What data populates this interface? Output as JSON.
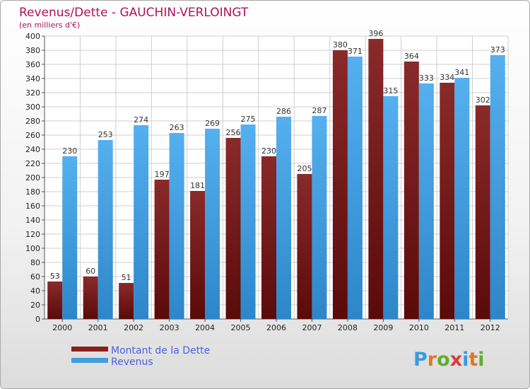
{
  "chart_data": {
    "type": "bar",
    "title": "Revenus/Dette - GAUCHIN-VERLOINGT",
    "subtitle": "(en milliers d'€)",
    "categories": [
      "2000",
      "2001",
      "2002",
      "2003",
      "2004",
      "2005",
      "2006",
      "2007",
      "2008",
      "2009",
      "2010",
      "2011",
      "2012"
    ],
    "series": [
      {
        "name": "Montant de la Dette",
        "color": "#8b1e1e",
        "values": [
          53,
          60,
          51,
          197,
          181,
          256,
          230,
          205,
          380,
          396,
          364,
          334,
          302
        ]
      },
      {
        "name": "Revenus",
        "color": "#3f9de0",
        "values": [
          230,
          253,
          274,
          263,
          269,
          275,
          286,
          287,
          371,
          315,
          333,
          341,
          373
        ]
      }
    ],
    "ylim": [
      0,
      400
    ],
    "ytick_step": 20,
    "grid": true,
    "legend_position": "bottom-left"
  },
  "logo": {
    "text": "Proxiti",
    "letters": [
      "P",
      "r",
      "o",
      "x",
      "i",
      "t",
      "i"
    ],
    "colors": [
      "#3a9be0",
      "#e07820",
      "#5ab030",
      "#e03a3a",
      "#3a9be0",
      "#e07820",
      "#5ab030"
    ]
  }
}
